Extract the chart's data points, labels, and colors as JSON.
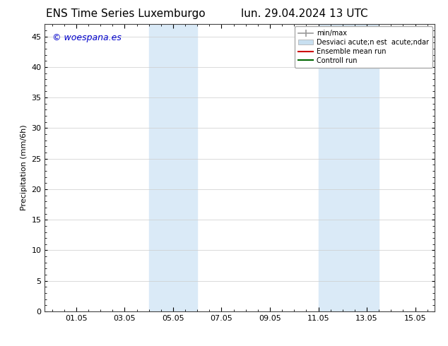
{
  "title_left": "ENS Time Series Luxemburgo",
  "title_right": "lun. 29.04.2024 13 UTC",
  "ylabel": "Precipitation (mm/6h)",
  "watermark": "© woespana.es",
  "watermark_color": "#0000cc",
  "ylim": [
    0,
    47
  ],
  "yticks": [
    0,
    5,
    10,
    15,
    20,
    25,
    30,
    35,
    40,
    45
  ],
  "xtick_labels": [
    "01.05",
    "03.05",
    "05.05",
    "07.05",
    "09.05",
    "11.05",
    "13.05",
    "15.05"
  ],
  "xtick_positions": [
    1.0,
    3.0,
    5.0,
    7.0,
    9.0,
    11.0,
    13.0,
    15.0
  ],
  "xlim": [
    -0.3,
    15.8
  ],
  "shaded_bands": [
    {
      "x_start": 4.0,
      "x_end": 6.0,
      "color": "#daeaf7"
    },
    {
      "x_start": 11.0,
      "x_end": 13.5,
      "color": "#daeaf7"
    }
  ],
  "legend_label_minmax": "min/max",
  "legend_label_std": "Desviaci acute;n est  acute;ndar",
  "legend_label_ens": "Ensemble mean run",
  "legend_label_ctrl": "Controll run",
  "color_minmax": "#999999",
  "color_std": "#c8dff0",
  "color_ens": "#cc0000",
  "color_ctrl": "#006600",
  "bg_color": "#ffffff",
  "grid_color": "#cccccc",
  "title_fontsize": 11,
  "tick_fontsize": 8,
  "ylabel_fontsize": 8,
  "legend_fontsize": 7,
  "watermark_fontsize": 9
}
